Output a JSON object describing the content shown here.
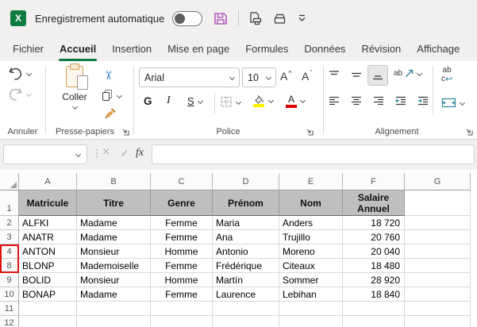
{
  "titlebar": {
    "autosave_label": "Enregistrement automatique",
    "autosave_on": false
  },
  "tabs": [
    {
      "label": "Fichier",
      "active": false
    },
    {
      "label": "Accueil",
      "active": true
    },
    {
      "label": "Insertion",
      "active": false
    },
    {
      "label": "Mise en page",
      "active": false
    },
    {
      "label": "Formules",
      "active": false
    },
    {
      "label": "Données",
      "active": false
    },
    {
      "label": "Révision",
      "active": false
    },
    {
      "label": "Affichage",
      "active": false
    }
  ],
  "ribbon": {
    "undo_group_label": "Annuler",
    "clipboard_group_label": "Presse-papiers",
    "paste_label": "Coller",
    "font_group_label": "Police",
    "font_name": "Arial",
    "font_size": "10",
    "bold_label": "G",
    "italic_label": "I",
    "underline_label": "S",
    "grow_font_label": "A",
    "grow_caret": "^",
    "shrink_font_label": "A",
    "shrink_caret": "ˇ",
    "font_color_label": "A",
    "orientation_label": "ab",
    "wrap_label_top": "ab",
    "wrap_label_bottom": "c",
    "wrap_return_glyph": "↩",
    "align_group_label": "Alignement"
  },
  "formula_bar": {
    "name_box_value": "",
    "formula_value": "",
    "dots_glyph": "⋮",
    "cancel_glyph": "×",
    "enter_glyph": "✓",
    "fx_label": "fx"
  },
  "icons": {
    "scissors_glyph": "✂"
  },
  "sheet": {
    "column_headers": [
      "A",
      "B",
      "C",
      "D",
      "E",
      "F",
      "G"
    ],
    "header_row": {
      "number": "1",
      "cells": [
        "Matricule",
        "Titre",
        "Genre",
        "Prénom",
        "Nom",
        "Salaire Annuel"
      ]
    },
    "rows": [
      {
        "number": "2",
        "cells": [
          "ALFKI",
          "Madame",
          "Femme",
          "Maria",
          "Anders",
          "18 720"
        ]
      },
      {
        "number": "3",
        "cells": [
          "ANATR",
          "Madame",
          "Femme",
          "Ana",
          "Trujillo",
          "20 760"
        ]
      },
      {
        "number": "4",
        "cells": [
          "ANTON",
          "Monsieur",
          "Homme",
          "Antonio",
          "Moreno",
          "20 040"
        ],
        "marked": true
      },
      {
        "number": "8",
        "cells": [
          "BLONP",
          "Mademoiselle",
          "Femme",
          "Frédérique",
          "Citeaux",
          "18 480"
        ],
        "marked": true
      },
      {
        "number": "9",
        "cells": [
          "BOLID",
          "Monsieur",
          "Homme",
          "Martín",
          "Sommer",
          "28 920"
        ]
      },
      {
        "number": "10",
        "cells": [
          "BONAP",
          "Madame",
          "Femme",
          "Laurence",
          "Lebihan",
          "18 840"
        ]
      },
      {
        "number": "11",
        "cells": [
          "",
          "",
          "",
          "",
          "",
          ""
        ]
      },
      {
        "number": "12",
        "cells": [
          "",
          "",
          "",
          "",
          "",
          ""
        ]
      }
    ]
  },
  "colors": {
    "accent_green": "#107C41",
    "save_icon": "#B65FC2",
    "hidden_rows_marker": "#E01212",
    "header_fill": "#BFBFBF",
    "teal_accent": "#2B8699",
    "highlight_yellow": "#FFF100",
    "font_red": "#E00000"
  }
}
